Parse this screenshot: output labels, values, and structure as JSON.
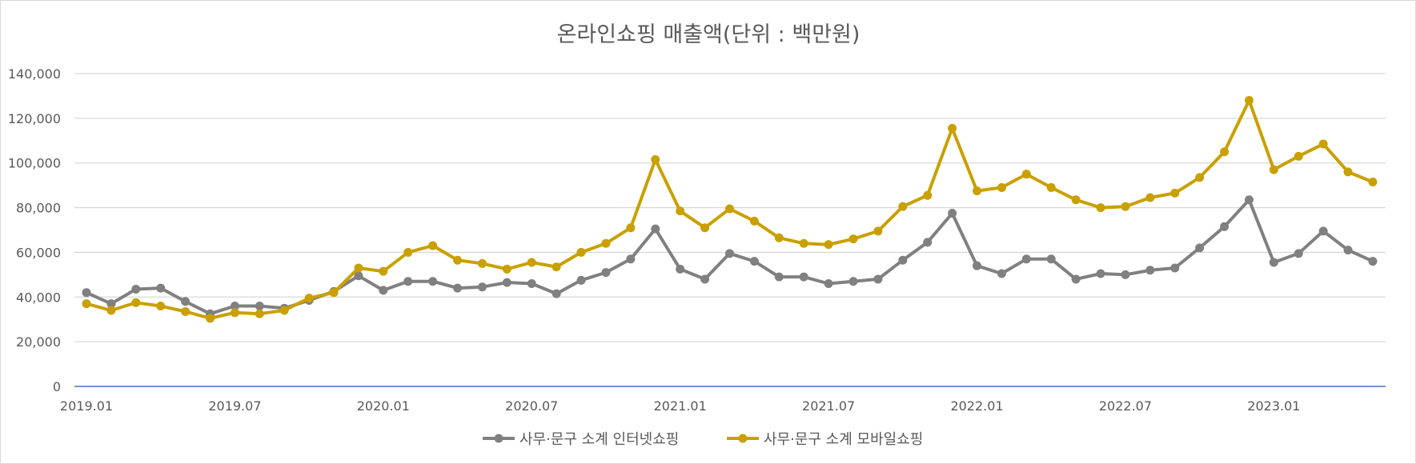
{
  "chart_data": {
    "type": "line",
    "title": "온라인쇼핑 매출액(단위 : 백만원)",
    "xlabel": "",
    "ylabel": "",
    "ylim": [
      0,
      140000
    ],
    "y_ticks": [
      0,
      20000,
      40000,
      60000,
      80000,
      100000,
      120000,
      140000
    ],
    "y_tick_labels": [
      "0",
      "20,000",
      "40,000",
      "60,000",
      "80,000",
      "100,000",
      "120,000",
      "140,000"
    ],
    "grid": true,
    "legend_position": "bottom",
    "x": [
      "2019.01",
      "2019.02",
      "2019.03",
      "2019.04",
      "2019.05",
      "2019.06",
      "2019.07",
      "2019.08",
      "2019.09",
      "2019.10",
      "2019.11",
      "2019.12",
      "2020.01",
      "2020.02",
      "2020.03",
      "2020.04",
      "2020.05",
      "2020.06",
      "2020.07",
      "2020.08",
      "2020.09",
      "2020.10",
      "2020.11",
      "2020.12",
      "2021.01",
      "2021.02",
      "2021.03",
      "2021.04",
      "2021.05",
      "2021.06",
      "2021.07",
      "2021.08",
      "2021.09",
      "2021.10",
      "2021.11",
      "2021.12",
      "2022.01",
      "2022.02",
      "2022.03",
      "2022.04",
      "2022.05",
      "2022.06",
      "2022.07",
      "2022.08",
      "2022.09",
      "2022.10",
      "2022.11",
      "2022.12",
      "2023.01",
      "2023.02",
      "2023.03",
      "2023.04",
      "2023.05"
    ],
    "x_tick_labels": [
      "2019.01",
      "2019.07",
      "2020.01",
      "2020.07",
      "2021.01",
      "2021.07",
      "2022.01",
      "2022.07",
      "2023.01"
    ],
    "series": [
      {
        "name": "사무·문구 소계 인터넷쇼핑",
        "color": "#808080",
        "values": [
          42000,
          37000,
          43500,
          44000,
          38000,
          32500,
          36000,
          36000,
          35000,
          38500,
          42500,
          49500,
          43000,
          47000,
          47000,
          44000,
          44500,
          46500,
          46000,
          41500,
          47500,
          51000,
          57000,
          70500,
          52500,
          48000,
          59500,
          56000,
          49000,
          49000,
          46000,
          47000,
          48000,
          56500,
          64500,
          77500,
          54000,
          50500,
          57000,
          57000,
          48000,
          50500,
          50000,
          52000,
          53000,
          62000,
          71500,
          83500,
          55500,
          59500,
          69500,
          61000,
          56000
        ]
      },
      {
        "name": "사무·문구 소계 모바일쇼핑",
        "color": "#C9A000",
        "values": [
          37000,
          34000,
          37500,
          36000,
          33500,
          30500,
          33000,
          32500,
          34000,
          39500,
          42000,
          53000,
          51500,
          60000,
          63000,
          56500,
          55000,
          52500,
          55500,
          53500,
          60000,
          64000,
          71000,
          101500,
          78500,
          71000,
          79500,
          74000,
          66500,
          64000,
          63500,
          66000,
          69500,
          80500,
          85500,
          115500,
          87500,
          89000,
          95000,
          89000,
          83500,
          80000,
          80500,
          84500,
          86500,
          93500,
          105000,
          128000,
          97000,
          103000,
          108500,
          96000,
          91500
        ]
      }
    ]
  }
}
